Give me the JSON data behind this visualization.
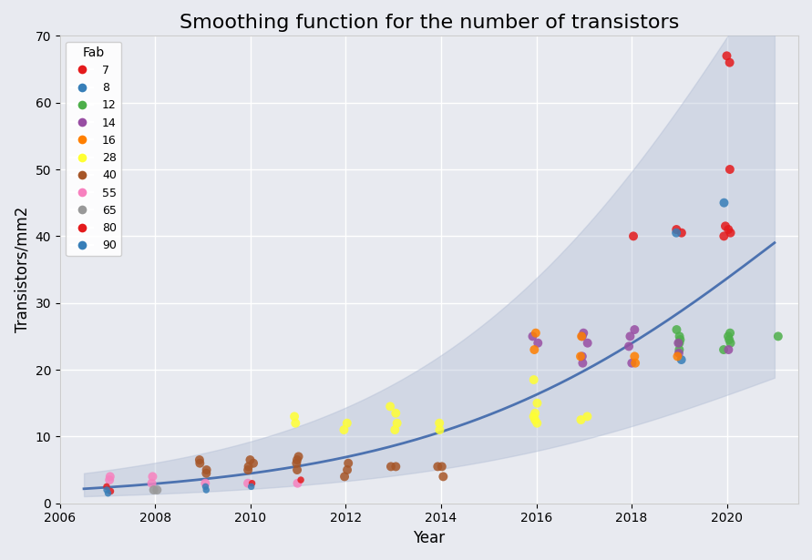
{
  "title": "Smoothing function for the number of transistors",
  "xlabel": "Year",
  "ylabel": "Transistors/mm2",
  "xlim": [
    2006,
    2021.5
  ],
  "ylim": [
    0,
    70
  ],
  "background_color": "#E8EAF0",
  "grid_color": "#ffffff",
  "fab_colors": {
    "7": "#e41a1c",
    "8": "#377eb8",
    "12": "#4daf4a",
    "14": "#984ea3",
    "16": "#ff7f00",
    "28": "#ffff33",
    "40": "#a65628",
    "55": "#f781bf",
    "65": "#999999",
    "80": "#e41a1c",
    "90": "#377eb8"
  },
  "fab_marker_sizes": {
    "7": 8,
    "8": 8,
    "12": 8,
    "14": 8,
    "16": 8,
    "28": 8,
    "40": 8,
    "55": 8,
    "65": 8,
    "80": 6,
    "90": 6
  },
  "data_points": [
    {
      "year": 2007,
      "value": 2.0,
      "fab": "90"
    },
    {
      "year": 2007,
      "value": 1.5,
      "fab": "90"
    },
    {
      "year": 2007,
      "value": 2.5,
      "fab": "80"
    },
    {
      "year": 2007,
      "value": 1.8,
      "fab": "80"
    },
    {
      "year": 2007,
      "value": 4.0,
      "fab": "55"
    },
    {
      "year": 2007,
      "value": 3.5,
      "fab": "55"
    },
    {
      "year": 2008,
      "value": 2.0,
      "fab": "65"
    },
    {
      "year": 2008,
      "value": 2.0,
      "fab": "65"
    },
    {
      "year": 2008,
      "value": 4.0,
      "fab": "55"
    },
    {
      "year": 2008,
      "value": 3.0,
      "fab": "55"
    },
    {
      "year": 2009,
      "value": 5.0,
      "fab": "40"
    },
    {
      "year": 2009,
      "value": 6.0,
      "fab": "40"
    },
    {
      "year": 2009,
      "value": 6.5,
      "fab": "40"
    },
    {
      "year": 2009,
      "value": 4.5,
      "fab": "40"
    },
    {
      "year": 2009,
      "value": 2.5,
      "fab": "90"
    },
    {
      "year": 2009,
      "value": 2.0,
      "fab": "90"
    },
    {
      "year": 2009,
      "value": 3.0,
      "fab": "55"
    },
    {
      "year": 2010,
      "value": 5.0,
      "fab": "40"
    },
    {
      "year": 2010,
      "value": 6.0,
      "fab": "40"
    },
    {
      "year": 2010,
      "value": 6.5,
      "fab": "40"
    },
    {
      "year": 2010,
      "value": 5.5,
      "fab": "40"
    },
    {
      "year": 2010,
      "value": 2.5,
      "fab": "90"
    },
    {
      "year": 2010,
      "value": 3.0,
      "fab": "55"
    },
    {
      "year": 2010,
      "value": 3.0,
      "fab": "80"
    },
    {
      "year": 2011,
      "value": 6.0,
      "fab": "40"
    },
    {
      "year": 2011,
      "value": 6.5,
      "fab": "40"
    },
    {
      "year": 2011,
      "value": 5.0,
      "fab": "40"
    },
    {
      "year": 2011,
      "value": 7.0,
      "fab": "40"
    },
    {
      "year": 2011,
      "value": 3.0,
      "fab": "55"
    },
    {
      "year": 2011,
      "value": 3.5,
      "fab": "80"
    },
    {
      "year": 2011,
      "value": 13.0,
      "fab": "28"
    },
    {
      "year": 2011,
      "value": 12.0,
      "fab": "28"
    },
    {
      "year": 2012,
      "value": 6.0,
      "fab": "40"
    },
    {
      "year": 2012,
      "value": 5.0,
      "fab": "40"
    },
    {
      "year": 2012,
      "value": 4.0,
      "fab": "40"
    },
    {
      "year": 2012,
      "value": 11.0,
      "fab": "28"
    },
    {
      "year": 2012,
      "value": 12.0,
      "fab": "28"
    },
    {
      "year": 2013,
      "value": 5.5,
      "fab": "40"
    },
    {
      "year": 2013,
      "value": 5.5,
      "fab": "40"
    },
    {
      "year": 2013,
      "value": 11.0,
      "fab": "28"
    },
    {
      "year": 2013,
      "value": 12.0,
      "fab": "28"
    },
    {
      "year": 2013,
      "value": 14.5,
      "fab": "28"
    },
    {
      "year": 2013,
      "value": 13.5,
      "fab": "28"
    },
    {
      "year": 2014,
      "value": 5.5,
      "fab": "40"
    },
    {
      "year": 2014,
      "value": 4.0,
      "fab": "40"
    },
    {
      "year": 2014,
      "value": 5.5,
      "fab": "40"
    },
    {
      "year": 2014,
      "value": 11.0,
      "fab": "28"
    },
    {
      "year": 2014,
      "value": 12.0,
      "fab": "28"
    },
    {
      "year": 2016,
      "value": 25.0,
      "fab": "14"
    },
    {
      "year": 2016,
      "value": 24.0,
      "fab": "14"
    },
    {
      "year": 2016,
      "value": 25.5,
      "fab": "16"
    },
    {
      "year": 2016,
      "value": 23.0,
      "fab": "16"
    },
    {
      "year": 2016,
      "value": 13.5,
      "fab": "28"
    },
    {
      "year": 2016,
      "value": 12.5,
      "fab": "28"
    },
    {
      "year": 2016,
      "value": 13.0,
      "fab": "28"
    },
    {
      "year": 2016,
      "value": 12.0,
      "fab": "28"
    },
    {
      "year": 2016,
      "value": 15.0,
      "fab": "28"
    },
    {
      "year": 2016,
      "value": 18.5,
      "fab": "28"
    },
    {
      "year": 2017,
      "value": 25.0,
      "fab": "14"
    },
    {
      "year": 2017,
      "value": 24.0,
      "fab": "14"
    },
    {
      "year": 2017,
      "value": 22.0,
      "fab": "14"
    },
    {
      "year": 2017,
      "value": 25.0,
      "fab": "16"
    },
    {
      "year": 2017,
      "value": 22.0,
      "fab": "16"
    },
    {
      "year": 2017,
      "value": 25.5,
      "fab": "14"
    },
    {
      "year": 2017,
      "value": 21.0,
      "fab": "14"
    },
    {
      "year": 2017,
      "value": 13.0,
      "fab": "28"
    },
    {
      "year": 2017,
      "value": 12.5,
      "fab": "28"
    },
    {
      "year": 2018,
      "value": 40.0,
      "fab": "7"
    },
    {
      "year": 2018,
      "value": 26.0,
      "fab": "14"
    },
    {
      "year": 2018,
      "value": 25.0,
      "fab": "14"
    },
    {
      "year": 2018,
      "value": 21.0,
      "fab": "16"
    },
    {
      "year": 2018,
      "value": 22.0,
      "fab": "16"
    },
    {
      "year": 2018,
      "value": 23.5,
      "fab": "14"
    },
    {
      "year": 2018,
      "value": 21.0,
      "fab": "14"
    },
    {
      "year": 2019,
      "value": 41.0,
      "fab": "7"
    },
    {
      "year": 2019,
      "value": 40.5,
      "fab": "7"
    },
    {
      "year": 2019,
      "value": 40.5,
      "fab": "8"
    },
    {
      "year": 2019,
      "value": 26.0,
      "fab": "12"
    },
    {
      "year": 2019,
      "value": 25.0,
      "fab": "12"
    },
    {
      "year": 2019,
      "value": 24.0,
      "fab": "12"
    },
    {
      "year": 2019,
      "value": 24.5,
      "fab": "12"
    },
    {
      "year": 2019,
      "value": 23.0,
      "fab": "12"
    },
    {
      "year": 2019,
      "value": 24.0,
      "fab": "14"
    },
    {
      "year": 2019,
      "value": 22.5,
      "fab": "14"
    },
    {
      "year": 2019,
      "value": 22.0,
      "fab": "16"
    },
    {
      "year": 2019,
      "value": 21.5,
      "fab": "8"
    },
    {
      "year": 2020,
      "value": 67.0,
      "fab": "7"
    },
    {
      "year": 2020,
      "value": 66.0,
      "fab": "7"
    },
    {
      "year": 2020,
      "value": 50.0,
      "fab": "7"
    },
    {
      "year": 2020,
      "value": 45.0,
      "fab": "8"
    },
    {
      "year": 2020,
      "value": 41.5,
      "fab": "7"
    },
    {
      "year": 2020,
      "value": 41.0,
      "fab": "7"
    },
    {
      "year": 2020,
      "value": 40.5,
      "fab": "7"
    },
    {
      "year": 2020,
      "value": 40.0,
      "fab": "7"
    },
    {
      "year": 2020,
      "value": 25.5,
      "fab": "12"
    },
    {
      "year": 2020,
      "value": 25.0,
      "fab": "12"
    },
    {
      "year": 2020,
      "value": 24.5,
      "fab": "12"
    },
    {
      "year": 2020,
      "value": 24.0,
      "fab": "12"
    },
    {
      "year": 2020,
      "value": 23.0,
      "fab": "12"
    },
    {
      "year": 2020,
      "value": 23.0,
      "fab": "14"
    },
    {
      "year": 2021,
      "value": 25.0,
      "fab": "12"
    }
  ],
  "legend_fabs": [
    "7",
    "8",
    "12",
    "14",
    "16",
    "28",
    "40",
    "55",
    "65",
    "80",
    "90"
  ],
  "legend_labels": [
    "7",
    "8",
    "12",
    "14",
    "16",
    "28",
    "40",
    "55",
    "65",
    "80",
    "90"
  ],
  "smooth_line_color": "#4c72b0",
  "smooth_fill_color": "#b0bcd4",
  "smooth_fill_alpha": 0.4,
  "title_fontsize": 16
}
